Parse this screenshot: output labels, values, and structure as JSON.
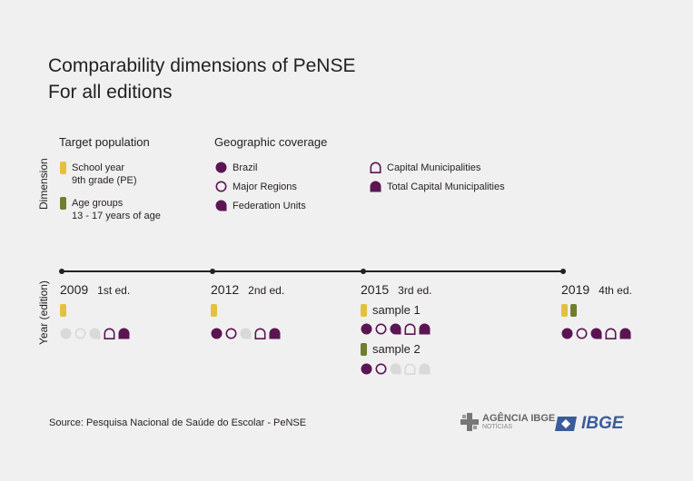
{
  "title": {
    "line1": "Comparability dimensions of PeNSE",
    "line2": "For all editions"
  },
  "axis_labels": {
    "dimension": "Dimension",
    "year": "Year (edition)"
  },
  "target_population": {
    "heading": "Target population",
    "items": [
      {
        "line1": "School year",
        "line2": "9th grade (PE)",
        "color": "#e3c13f"
      },
      {
        "line1": "Age groups",
        "line2": "13 - 17 years of age",
        "color": "#6f7e30"
      }
    ]
  },
  "geographic_coverage": {
    "heading": "Geographic coverage",
    "items": [
      {
        "label": "Brazil",
        "icon": "filled-circle"
      },
      {
        "label": "Major Regions",
        "icon": "outline-circle"
      },
      {
        "label": "Federation Units",
        "icon": "filled-leaf"
      },
      {
        "label": "Capital Municipalities",
        "icon": "outline-arch"
      },
      {
        "label": "Total Capital Municipalities",
        "icon": "filled-arch"
      }
    ]
  },
  "colors": {
    "purple": "#5b1553",
    "grey": "#d9d9d9",
    "yellow": "#e3c13f",
    "green": "#6f7e30"
  },
  "editions": [
    {
      "year": "2009",
      "label": "1st ed."
    },
    {
      "year": "2012",
      "label": "2nd ed."
    },
    {
      "year": "2015",
      "label": "3rd ed.",
      "samples": [
        "sample 1",
        "sample 2"
      ]
    },
    {
      "year": "2019",
      "label": "4th ed."
    }
  ],
  "source": "Source: Pesquisa Nacional de Saúde do Escolar - PeNSE",
  "logos": {
    "agencia": "AGÊNCIA IBGE",
    "agencia_sub": "NOTÍCIAS",
    "ibge": "IBGE"
  }
}
